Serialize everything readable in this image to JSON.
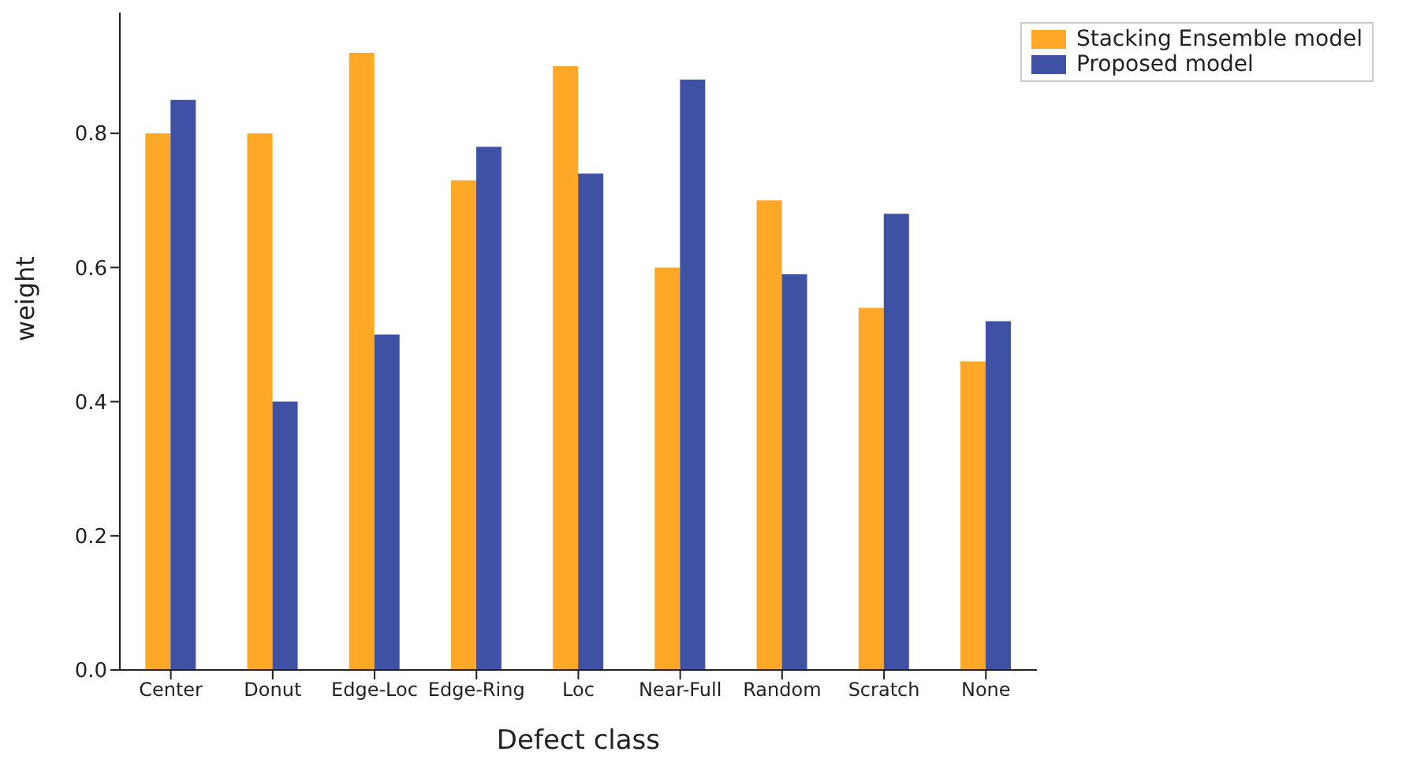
{
  "chart_data": {
    "type": "bar",
    "xlabel": "Defect class",
    "ylabel": "weight",
    "categories": [
      "Center",
      "Donut",
      "Edge-Loc",
      "Edge-Ring",
      "Loc",
      "Near-Full",
      "Random",
      "Scratch",
      "None"
    ],
    "series": [
      {
        "name": "Stacking Ensemble model",
        "color": "#ffa726",
        "values": [
          0.8,
          0.8,
          0.92,
          0.73,
          0.9,
          0.6,
          0.7,
          0.54,
          0.46
        ]
      },
      {
        "name": "Proposed model",
        "color": "#3f51a5",
        "values": [
          0.85,
          0.4,
          0.5,
          0.78,
          0.74,
          0.88,
          0.59,
          0.68,
          0.52
        ]
      }
    ],
    "ylim": [
      0,
      0.98
    ],
    "yticks": [
      {
        "value": 0,
        "label": "0.0"
      },
      {
        "value": 0.2,
        "label": "0.2"
      },
      {
        "value": 0.4,
        "label": "0.4"
      },
      {
        "value": 0.6,
        "label": "0.6"
      },
      {
        "value": 0.8,
        "label": "0.8"
      }
    ],
    "grid": false,
    "legend": "top right"
  }
}
